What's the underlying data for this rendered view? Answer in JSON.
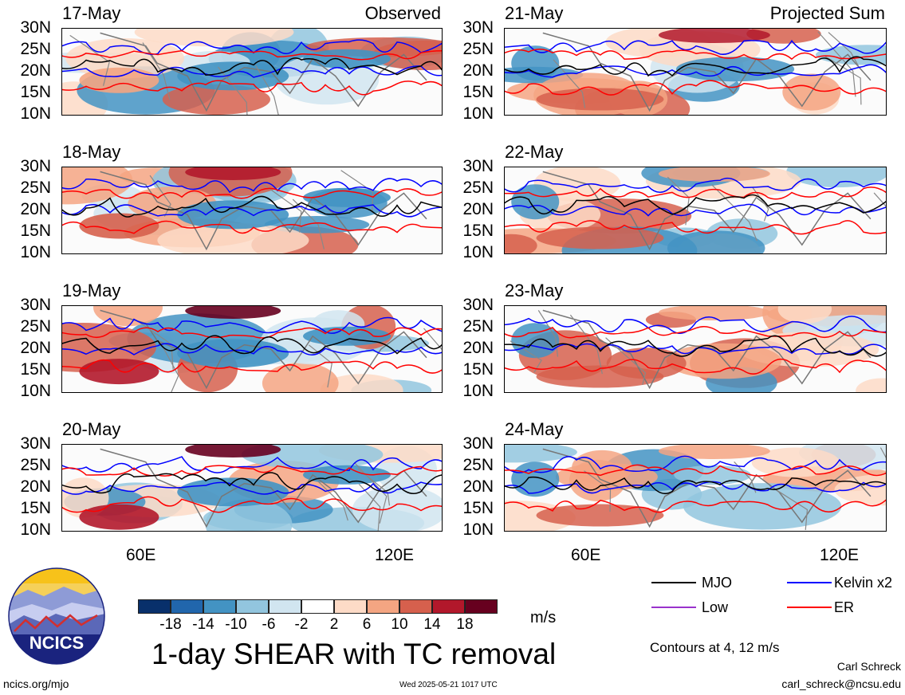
{
  "panels": {
    "left": [
      {
        "date": "17-May",
        "corner": "Observed"
      },
      {
        "date": "18-May",
        "corner": ""
      },
      {
        "date": "19-May",
        "corner": ""
      },
      {
        "date": "20-May",
        "corner": ""
      }
    ],
    "right": [
      {
        "date": "21-May",
        "corner": "Projected Sum"
      },
      {
        "date": "22-May",
        "corner": ""
      },
      {
        "date": "23-May",
        "corner": ""
      },
      {
        "date": "24-May",
        "corner": ""
      }
    ]
  },
  "lat_ticks": [
    "30N",
    "25N",
    "20N",
    "15N",
    "10N"
  ],
  "lon_ticks": [
    "60E",
    "120E"
  ],
  "colorbar": {
    "colors": [
      "#08306b",
      "#2166ac",
      "#4393c3",
      "#92c5de",
      "#d1e5f0",
      "#ffffff",
      "#fddbc7",
      "#f4a582",
      "#d6604d",
      "#b2182b",
      "#67001f"
    ],
    "ticks": [
      "-18",
      "-14",
      "-10",
      "-6",
      "-2",
      "2",
      "6",
      "10",
      "14",
      "18"
    ],
    "units": "m/s"
  },
  "legend": {
    "items": [
      {
        "label": "MJO",
        "color": "#000000"
      },
      {
        "label": "Kelvin x2",
        "color": "#0000ff"
      },
      {
        "label": "Low",
        "color": "#9932cc"
      },
      {
        "label": "ER",
        "color": "#ff0000"
      }
    ],
    "contour_note": "Contours at 4, 12 m/s"
  },
  "title": "1-day SHEAR with TC removal",
  "logo_text": "NCICS",
  "footer": {
    "url": "ncics.org/mjo",
    "timestamp": "Wed 2025-05-21 1017 UTC",
    "author": "Carl Schreck",
    "email": "carl_schreck@ncsu.edu"
  }
}
